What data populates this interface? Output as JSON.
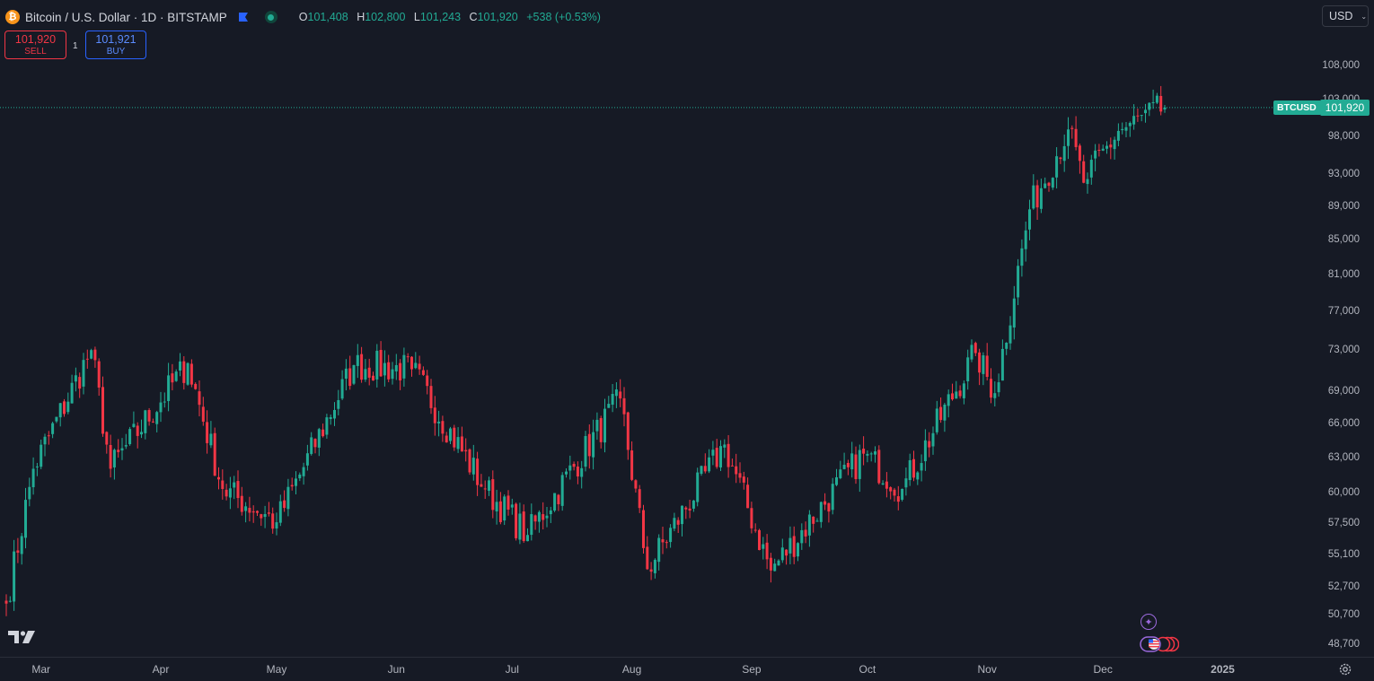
{
  "header": {
    "symbol_title": "Bitcoin / U.S. Dollar · 1D · BITSTAMP",
    "ohlc": {
      "open_key": "O",
      "open": "101,408",
      "high_key": "H",
      "high": "102,800",
      "low_key": "L",
      "low": "101,243",
      "close_key": "C",
      "close": "101,920",
      "change": "+538 (+0.53%)"
    }
  },
  "trade": {
    "sell_price": "101,920",
    "sell_label": "SELL",
    "spread": "1",
    "buy_price": "101,921",
    "buy_label": "BUY"
  },
  "currency": {
    "selected": "USD"
  },
  "last_price": {
    "symbol": "BTCUSD",
    "value": "101,920"
  },
  "icons": {
    "coin": "bitcoin-logo-icon",
    "flag": "flag-icon",
    "settings": "gear-icon",
    "brand": "tradingview-logo-icon",
    "event": "sparkle-event-icon",
    "economic_events": "us-flag-events-icon"
  },
  "colors": {
    "up": "#22ab94",
    "down": "#f23645",
    "background": "#161a25",
    "buy": "#2962ff",
    "bitcoin": "#f7931a"
  },
  "chart_data": {
    "type": "candlestick",
    "title": "Bitcoin / U.S. Dollar · 1D · BITSTAMP",
    "scale": "log",
    "y_ticks": [
      "108,000",
      "103,000",
      "98,000",
      "93,000",
      "89,000",
      "85,000",
      "81,000",
      "77,000",
      "73,000",
      "69,000",
      "66,000",
      "63,000",
      "60,000",
      "57,500",
      "55,100",
      "52,700",
      "50,700",
      "48,700"
    ],
    "x_ticks": [
      "Mar",
      "Apr",
      "May",
      "Jun",
      "Jul",
      "Aug",
      "Sep",
      "Oct",
      "Nov",
      "Dec",
      "2025"
    ],
    "date_range": [
      "2024-02-21",
      "2024-12-17"
    ],
    "last_close": 101920,
    "key_points": [
      {
        "date": "2024-02-21",
        "close": 51500
      },
      {
        "date": "2024-02-28",
        "close": 62000
      },
      {
        "date": "2024-03-14",
        "close": 73000
      },
      {
        "date": "2024-03-19",
        "close": 62000
      },
      {
        "date": "2024-04-08",
        "close": 71700
      },
      {
        "date": "2024-04-17",
        "close": 60300
      },
      {
        "date": "2024-05-01",
        "close": 57600
      },
      {
        "date": "2024-05-21",
        "close": 71500
      },
      {
        "date": "2024-06-05",
        "close": 71100
      },
      {
        "date": "2024-06-24",
        "close": 60300
      },
      {
        "date": "2024-07-05",
        "close": 56600
      },
      {
        "date": "2024-07-29",
        "close": 68300
      },
      {
        "date": "2024-08-05",
        "close": 54000
      },
      {
        "date": "2024-08-25",
        "close": 64100
      },
      {
        "date": "2024-09-06",
        "close": 53900
      },
      {
        "date": "2024-09-30",
        "close": 63300
      },
      {
        "date": "2024-10-10",
        "close": 60300
      },
      {
        "date": "2024-10-29",
        "close": 72700
      },
      {
        "date": "2024-11-03",
        "close": 68800
      },
      {
        "date": "2024-11-12",
        "close": 88600
      },
      {
        "date": "2024-11-22",
        "close": 98900
      },
      {
        "date": "2024-11-26",
        "close": 91900
      },
      {
        "date": "2024-12-05",
        "close": 98700
      },
      {
        "date": "2024-12-17",
        "close": 101920
      }
    ]
  }
}
